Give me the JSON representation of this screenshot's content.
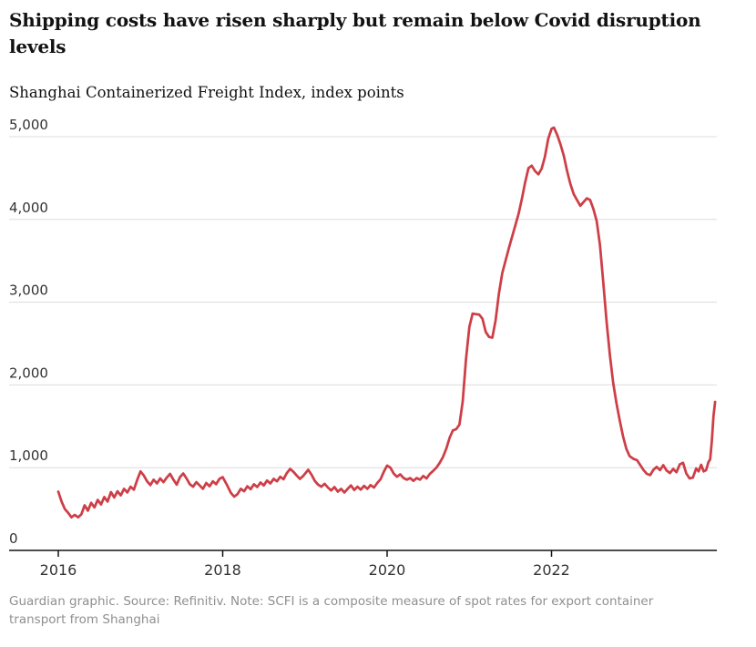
{
  "header": {
    "title": "Shipping costs have risen sharply but remain below Covid disruption levels",
    "subtitle": "Shanghai Containerized Freight Index, index points"
  },
  "footer": {
    "note": "Guardian graphic. Source: Refinitiv. Note: SCFI is a composite measure of spot rates for export container transport from Shanghai"
  },
  "colors": {
    "line": "#ce3e47",
    "grid": "#dcdcdc",
    "axis": "#121212",
    "tick_label": "#333333",
    "note_text": "#8f8f8f"
  },
  "chart_data": {
    "type": "line",
    "title": "Shipping costs have risen sharply but remain below Covid disruption levels",
    "series_name": "Shanghai Containerized Freight Index",
    "ylabel": "index points",
    "xlabel": "",
    "legend": "none",
    "grid": "horizontal",
    "xlim": [
      2016,
      2024
    ],
    "ylim": [
      0,
      5000
    ],
    "y_ticks": [
      {
        "value": 0,
        "label": "0"
      },
      {
        "value": 1000,
        "label": "1,000"
      },
      {
        "value": 2000,
        "label": "2,000"
      },
      {
        "value": 3000,
        "label": "3,000"
      },
      {
        "value": 4000,
        "label": "4,000"
      },
      {
        "value": 5000,
        "label": "5,000"
      }
    ],
    "x_ticks": [
      {
        "value": 2016,
        "label": "2016"
      },
      {
        "value": 2018,
        "label": "2018"
      },
      {
        "value": 2020,
        "label": "2020"
      },
      {
        "value": 2022,
        "label": "2022"
      }
    ],
    "points": [
      [
        2016.0,
        710
      ],
      [
        2016.04,
        590
      ],
      [
        2016.08,
        500
      ],
      [
        2016.12,
        455
      ],
      [
        2016.16,
        400
      ],
      [
        2016.2,
        430
      ],
      [
        2016.24,
        400
      ],
      [
        2016.28,
        435
      ],
      [
        2016.32,
        545
      ],
      [
        2016.36,
        480
      ],
      [
        2016.4,
        575
      ],
      [
        2016.44,
        520
      ],
      [
        2016.48,
        610
      ],
      [
        2016.52,
        555
      ],
      [
        2016.56,
        645
      ],
      [
        2016.6,
        590
      ],
      [
        2016.64,
        705
      ],
      [
        2016.68,
        640
      ],
      [
        2016.72,
        715
      ],
      [
        2016.76,
        665
      ],
      [
        2016.8,
        745
      ],
      [
        2016.84,
        700
      ],
      [
        2016.88,
        770
      ],
      [
        2016.92,
        735
      ],
      [
        2016.96,
        850
      ],
      [
        2017.0,
        955
      ],
      [
        2017.04,
        905
      ],
      [
        2017.08,
        835
      ],
      [
        2017.12,
        790
      ],
      [
        2017.16,
        855
      ],
      [
        2017.2,
        810
      ],
      [
        2017.24,
        870
      ],
      [
        2017.28,
        825
      ],
      [
        2017.32,
        880
      ],
      [
        2017.36,
        925
      ],
      [
        2017.4,
        855
      ],
      [
        2017.44,
        795
      ],
      [
        2017.48,
        885
      ],
      [
        2017.52,
        930
      ],
      [
        2017.56,
        870
      ],
      [
        2017.6,
        800
      ],
      [
        2017.64,
        770
      ],
      [
        2017.68,
        825
      ],
      [
        2017.72,
        785
      ],
      [
        2017.76,
        745
      ],
      [
        2017.8,
        815
      ],
      [
        2017.84,
        775
      ],
      [
        2017.88,
        835
      ],
      [
        2017.92,
        800
      ],
      [
        2017.96,
        865
      ],
      [
        2018.0,
        885
      ],
      [
        2018.05,
        795
      ],
      [
        2018.1,
        695
      ],
      [
        2018.14,
        650
      ],
      [
        2018.18,
        680
      ],
      [
        2018.22,
        745
      ],
      [
        2018.26,
        715
      ],
      [
        2018.3,
        775
      ],
      [
        2018.34,
        740
      ],
      [
        2018.38,
        800
      ],
      [
        2018.42,
        765
      ],
      [
        2018.46,
        820
      ],
      [
        2018.5,
        785
      ],
      [
        2018.54,
        845
      ],
      [
        2018.58,
        810
      ],
      [
        2018.62,
        865
      ],
      [
        2018.66,
        835
      ],
      [
        2018.7,
        890
      ],
      [
        2018.74,
        860
      ],
      [
        2018.78,
        935
      ],
      [
        2018.82,
        985
      ],
      [
        2018.86,
        950
      ],
      [
        2018.9,
        905
      ],
      [
        2018.94,
        865
      ],
      [
        2018.98,
        900
      ],
      [
        2019.04,
        975
      ],
      [
        2019.08,
        915
      ],
      [
        2019.12,
        840
      ],
      [
        2019.16,
        795
      ],
      [
        2019.2,
        770
      ],
      [
        2019.24,
        805
      ],
      [
        2019.28,
        760
      ],
      [
        2019.32,
        725
      ],
      [
        2019.36,
        765
      ],
      [
        2019.4,
        710
      ],
      [
        2019.44,
        745
      ],
      [
        2019.48,
        700
      ],
      [
        2019.52,
        745
      ],
      [
        2019.56,
        785
      ],
      [
        2019.6,
        730
      ],
      [
        2019.64,
        770
      ],
      [
        2019.68,
        735
      ],
      [
        2019.72,
        780
      ],
      [
        2019.76,
        745
      ],
      [
        2019.8,
        790
      ],
      [
        2019.84,
        760
      ],
      [
        2019.88,
        815
      ],
      [
        2019.92,
        860
      ],
      [
        2019.96,
        950
      ],
      [
        2020.0,
        1025
      ],
      [
        2020.04,
        1000
      ],
      [
        2020.08,
        930
      ],
      [
        2020.12,
        890
      ],
      [
        2020.16,
        920
      ],
      [
        2020.2,
        875
      ],
      [
        2020.24,
        855
      ],
      [
        2020.28,
        875
      ],
      [
        2020.32,
        840
      ],
      [
        2020.36,
        875
      ],
      [
        2020.4,
        855
      ],
      [
        2020.44,
        900
      ],
      [
        2020.48,
        870
      ],
      [
        2020.52,
        925
      ],
      [
        2020.56,
        960
      ],
      [
        2020.6,
        1000
      ],
      [
        2020.64,
        1060
      ],
      [
        2020.68,
        1130
      ],
      [
        2020.72,
        1230
      ],
      [
        2020.76,
        1360
      ],
      [
        2020.8,
        1450
      ],
      [
        2020.84,
        1465
      ],
      [
        2020.88,
        1520
      ],
      [
        2020.92,
        1800
      ],
      [
        2020.96,
        2310
      ],
      [
        2021.0,
        2700
      ],
      [
        2021.04,
        2862
      ],
      [
        2021.08,
        2855
      ],
      [
        2021.12,
        2850
      ],
      [
        2021.16,
        2800
      ],
      [
        2021.2,
        2640
      ],
      [
        2021.24,
        2580
      ],
      [
        2021.28,
        2570
      ],
      [
        2021.32,
        2780
      ],
      [
        2021.36,
        3100
      ],
      [
        2021.4,
        3350
      ],
      [
        2021.44,
        3500
      ],
      [
        2021.48,
        3650
      ],
      [
        2021.52,
        3790
      ],
      [
        2021.56,
        3930
      ],
      [
        2021.6,
        4070
      ],
      [
        2021.64,
        4250
      ],
      [
        2021.68,
        4450
      ],
      [
        2021.72,
        4620
      ],
      [
        2021.76,
        4650
      ],
      [
        2021.8,
        4585
      ],
      [
        2021.84,
        4545
      ],
      [
        2021.88,
        4615
      ],
      [
        2021.92,
        4760
      ],
      [
        2021.96,
        4975
      ],
      [
        2022.0,
        5095
      ],
      [
        2022.03,
        5110
      ],
      [
        2022.07,
        5020
      ],
      [
        2022.11,
        4905
      ],
      [
        2022.15,
        4770
      ],
      [
        2022.19,
        4585
      ],
      [
        2022.23,
        4425
      ],
      [
        2022.27,
        4305
      ],
      [
        2022.31,
        4235
      ],
      [
        2022.35,
        4165
      ],
      [
        2022.39,
        4210
      ],
      [
        2022.43,
        4255
      ],
      [
        2022.47,
        4235
      ],
      [
        2022.51,
        4125
      ],
      [
        2022.55,
        3980
      ],
      [
        2022.59,
        3690
      ],
      [
        2022.63,
        3230
      ],
      [
        2022.67,
        2760
      ],
      [
        2022.71,
        2360
      ],
      [
        2022.75,
        2025
      ],
      [
        2022.79,
        1780
      ],
      [
        2022.83,
        1570
      ],
      [
        2022.87,
        1380
      ],
      [
        2022.91,
        1230
      ],
      [
        2022.95,
        1140
      ],
      [
        2023.0,
        1105
      ],
      [
        2023.04,
        1090
      ],
      [
        2023.08,
        1030
      ],
      [
        2023.12,
        970
      ],
      [
        2023.16,
        925
      ],
      [
        2023.2,
        910
      ],
      [
        2023.24,
        975
      ],
      [
        2023.28,
        1010
      ],
      [
        2023.32,
        970
      ],
      [
        2023.36,
        1030
      ],
      [
        2023.4,
        965
      ],
      [
        2023.44,
        935
      ],
      [
        2023.48,
        985
      ],
      [
        2023.52,
        945
      ],
      [
        2023.56,
        1040
      ],
      [
        2023.6,
        1060
      ],
      [
        2023.64,
        930
      ],
      [
        2023.68,
        870
      ],
      [
        2023.72,
        880
      ],
      [
        2023.76,
        990
      ],
      [
        2023.79,
        955
      ],
      [
        2023.82,
        1035
      ],
      [
        2023.85,
        955
      ],
      [
        2023.88,
        970
      ],
      [
        2023.91,
        1070
      ],
      [
        2023.93,
        1100
      ],
      [
        2023.95,
        1320
      ],
      [
        2023.97,
        1620
      ],
      [
        2023.99,
        1795
      ]
    ]
  }
}
